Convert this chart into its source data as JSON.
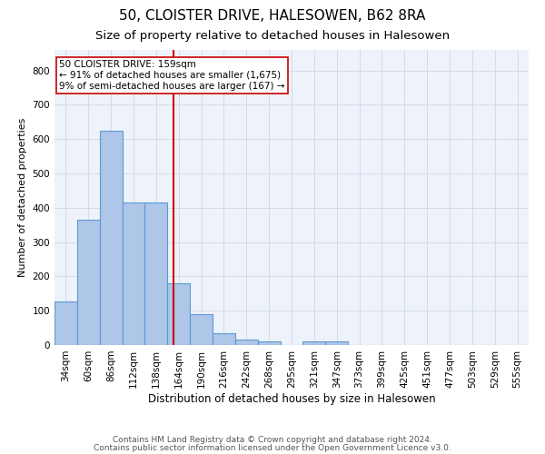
{
  "title1": "50, CLOISTER DRIVE, HALESOWEN, B62 8RA",
  "title2": "Size of property relative to detached houses in Halesowen",
  "xlabel": "Distribution of detached houses by size in Halesowen",
  "ylabel": "Number of detached properties",
  "categories": [
    "34sqm",
    "60sqm",
    "86sqm",
    "112sqm",
    "138sqm",
    "164sqm",
    "190sqm",
    "216sqm",
    "242sqm",
    "268sqm",
    "295sqm",
    "321sqm",
    "347sqm",
    "373sqm",
    "399sqm",
    "425sqm",
    "451sqm",
    "477sqm",
    "503sqm",
    "529sqm",
    "555sqm"
  ],
  "values": [
    128,
    365,
    625,
    415,
    415,
    180,
    90,
    35,
    15,
    10,
    0,
    10,
    10,
    0,
    0,
    0,
    0,
    0,
    0,
    0,
    0
  ],
  "bar_color": "#aec6e8",
  "bar_edge_color": "#5b9bd5",
  "bar_width": 1.0,
  "property_line_x": 4.77,
  "annotation_line1": "50 CLOISTER DRIVE: 159sqm",
  "annotation_line2": "← 91% of detached houses are smaller (1,675)",
  "annotation_line3": "9% of semi-detached houses are larger (167) →",
  "annotation_box_color": "#ffffff",
  "annotation_box_edge": "#cc0000",
  "vline_color": "#cc0000",
  "ylim": [
    0,
    860
  ],
  "yticks": [
    0,
    100,
    200,
    300,
    400,
    500,
    600,
    700,
    800
  ],
  "grid_color": "#d0d8e8",
  "bg_color": "#eef2fa",
  "footer1": "Contains HM Land Registry data © Crown copyright and database right 2024.",
  "footer2": "Contains public sector information licensed under the Open Government Licence v3.0.",
  "title1_fontsize": 11,
  "title2_fontsize": 9.5,
  "xlabel_fontsize": 8.5,
  "ylabel_fontsize": 8,
  "tick_fontsize": 7.5,
  "annotation_fontsize": 7.5,
  "footer_fontsize": 6.5
}
